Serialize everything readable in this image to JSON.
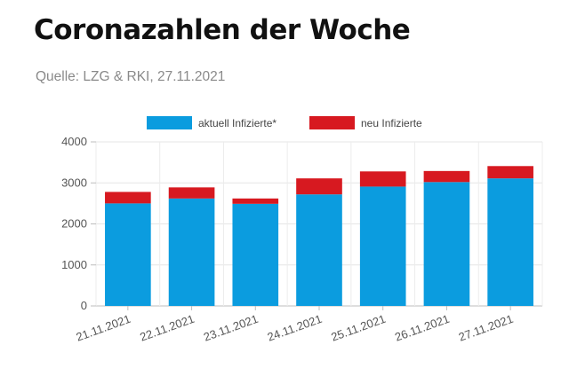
{
  "header": {
    "title": "Coronazahlen der Woche",
    "source": "Quelle: LZG & RKI, 27.11.2021"
  },
  "chart_data": {
    "type": "bar",
    "stacked": true,
    "categories": [
      "21.11.2021",
      "22.11.2021",
      "23.11.2021",
      "24.11.2021",
      "25.11.2021",
      "26.11.2021",
      "27.11.2021"
    ],
    "series": [
      {
        "name": "aktuell Infizierte*",
        "color": "#0b9cdf",
        "values": [
          2500,
          2620,
          2490,
          2720,
          2910,
          3020,
          3110
        ]
      },
      {
        "name": "neu Infizierte",
        "color": "#d71920",
        "values": [
          280,
          270,
          130,
          390,
          370,
          270,
          300
        ]
      }
    ],
    "yticks": [
      0,
      1000,
      2000,
      3000,
      4000
    ],
    "ylim": [
      0,
      4000
    ],
    "grid": true,
    "legend": "top-center"
  }
}
